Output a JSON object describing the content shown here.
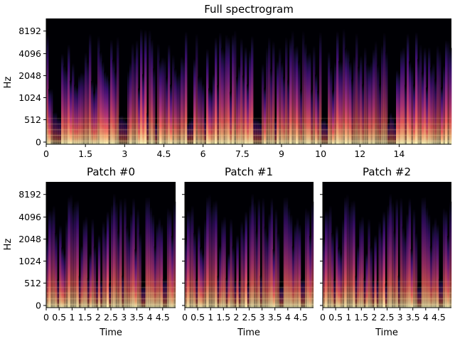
{
  "chart_data": [
    {
      "type": "heatmap",
      "title": "Full spectrogram",
      "xlabel": "",
      "ylabel": "Hz",
      "x_ticks": [
        "0",
        "1.5",
        "3",
        "4.5",
        "6",
        "7.5",
        "9",
        "10",
        "12",
        "14"
      ],
      "x_tick_values": [
        0,
        1.5,
        3,
        4.5,
        6,
        7.5,
        9,
        10.5,
        12,
        13.5
      ],
      "xlim": [
        0,
        15.5
      ],
      "y_ticks": [
        "0",
        "512",
        "1024",
        "2048",
        "4096",
        "8192"
      ],
      "y_scale": "symlog (mel-like)",
      "ylim": [
        0,
        11025
      ],
      "colormap": "magma"
    },
    {
      "type": "heatmap",
      "title": "Patch #0",
      "xlabel": "Time",
      "ylabel": "Hz",
      "x_ticks": [
        "0",
        "0.5",
        "1",
        "1.5",
        "2",
        "2.5",
        "3",
        "3.5",
        "4",
        "4.5"
      ],
      "x_tick_values": [
        0,
        0.5,
        1,
        1.5,
        2,
        2.5,
        3,
        3.5,
        4,
        4.5
      ],
      "xlim": [
        0,
        5
      ],
      "y_ticks": [
        "0",
        "512",
        "1024",
        "2048",
        "4096",
        "8192"
      ],
      "colormap": "magma"
    },
    {
      "type": "heatmap",
      "title": "Patch #1",
      "xlabel": "Time",
      "x_ticks": [
        "0",
        "0.5",
        "1",
        "1.5",
        "2",
        "2.5",
        "3",
        "3.5",
        "4",
        "4.5"
      ],
      "x_tick_values": [
        0,
        0.5,
        1,
        1.5,
        2,
        2.5,
        3,
        3.5,
        4,
        4.5
      ],
      "xlim": [
        0,
        5
      ],
      "colormap": "magma"
    },
    {
      "type": "heatmap",
      "title": "Patch #2",
      "xlabel": "Time",
      "x_ticks": [
        "0",
        "0.5",
        "1",
        "1.5",
        "2",
        "2.5",
        "3",
        "3.5",
        "4",
        "4.5"
      ],
      "x_tick_values": [
        0,
        0.5,
        1,
        1.5,
        2,
        2.5,
        3,
        3.5,
        4,
        4.5
      ],
      "xlim": [
        0,
        5
      ],
      "colormap": "magma"
    }
  ],
  "colors": {
    "magma_dark": "#000004",
    "magma_purple": "#721f81",
    "magma_pink": "#f1605d",
    "magma_light": "#fcfdbf"
  }
}
